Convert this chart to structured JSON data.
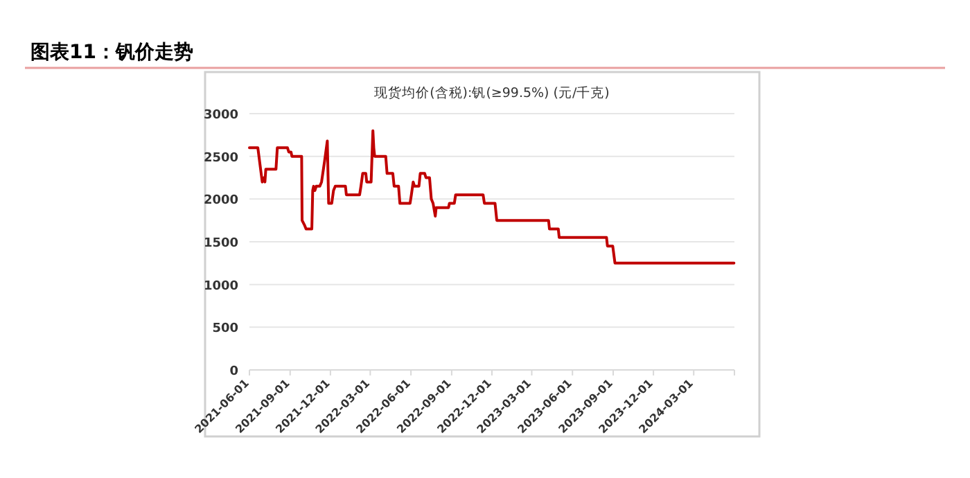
{
  "chart_data": {
    "type": "line",
    "title": "图表11：钒价走势",
    "subtitle": "现货均价(含税):钒(≥99.5%) (元/千克)",
    "series": [
      {
        "color": "#c00000",
        "x": [
          "2021-06-01",
          "2021-06-20",
          "2021-06-25",
          "2021-06-30",
          "2021-07-04",
          "2021-07-06",
          "2021-07-08",
          "2021-07-31",
          "2021-08-03",
          "2021-08-26",
          "2021-08-29",
          "2021-09-03",
          "2021-09-05",
          "2021-09-27",
          "2021-09-28",
          "2021-10-03",
          "2021-10-07",
          "2021-10-20",
          "2021-10-22",
          "2021-10-24",
          "2021-10-27",
          "2021-10-30",
          "2021-11-07",
          "2021-11-11",
          "2021-11-18",
          "2021-11-24",
          "2021-11-27",
          "2021-12-04",
          "2021-12-08",
          "2021-12-12",
          "2022-01-04",
          "2022-01-06",
          "2022-02-05",
          "2022-02-08",
          "2022-02-12",
          "2022-02-19",
          "2022-02-21",
          "2022-03-03",
          "2022-03-07",
          "2022-03-09",
          "2022-03-11",
          "2022-04-05",
          "2022-04-08",
          "2022-04-21",
          "2022-04-24",
          "2022-05-04",
          "2022-05-07",
          "2022-05-30",
          "2022-06-02",
          "2022-06-06",
          "2022-06-09",
          "2022-06-19",
          "2022-06-22",
          "2022-07-02",
          "2022-07-05",
          "2022-07-13",
          "2022-07-17",
          "2022-07-21",
          "2022-07-26",
          "2022-07-28",
          "2022-08-25",
          "2022-08-27",
          "2022-09-07",
          "2022-09-10",
          "2022-11-11",
          "2022-11-14",
          "2022-12-08",
          "2022-12-12",
          "2023-04-08",
          "2023-04-10",
          "2023-04-30",
          "2023-05-02",
          "2023-08-17",
          "2023-08-19",
          "2023-08-31",
          "2023-09-05",
          "2024-05-31"
        ],
        "values": [
          2600,
          2600,
          2400,
          2200,
          2250,
          2200,
          2350,
          2350,
          2600,
          2600,
          2550,
          2550,
          2500,
          2500,
          1750,
          1700,
          1650,
          1650,
          2100,
          2150,
          2100,
          2150,
          2150,
          2200,
          2450,
          2680,
          1950,
          1950,
          2100,
          2150,
          2150,
          2050,
          2050,
          2150,
          2300,
          2300,
          2200,
          2200,
          2800,
          2600,
          2500,
          2500,
          2300,
          2300,
          2150,
          2150,
          1950,
          1950,
          2050,
          2200,
          2150,
          2150,
          2300,
          2300,
          2250,
          2250,
          2000,
          1950,
          1800,
          1900,
          1900,
          1950,
          1950,
          2050,
          2050,
          1950,
          1950,
          1750,
          1750,
          1650,
          1650,
          1550,
          1550,
          1450,
          1450,
          1250,
          1250
        ]
      }
    ],
    "xlim": [
      "2021-06-01",
      "2024-06-01"
    ],
    "xticks": [
      "2021-06-01",
      "2021-09-01",
      "2021-12-01",
      "2022-03-01",
      "2022-06-01",
      "2022-09-01",
      "2022-12-01",
      "2023-03-01",
      "2023-06-01",
      "2023-09-01",
      "2023-12-01",
      "2024-03-01",
      {
        "value": "2024-06-01",
        "label": null
      }
    ],
    "ylim": [
      0,
      3000
    ],
    "yticks": [
      0,
      500,
      1000,
      1500,
      2000,
      2500,
      3000
    ],
    "grid": "y",
    "line_style": "solid",
    "marker": "none"
  }
}
